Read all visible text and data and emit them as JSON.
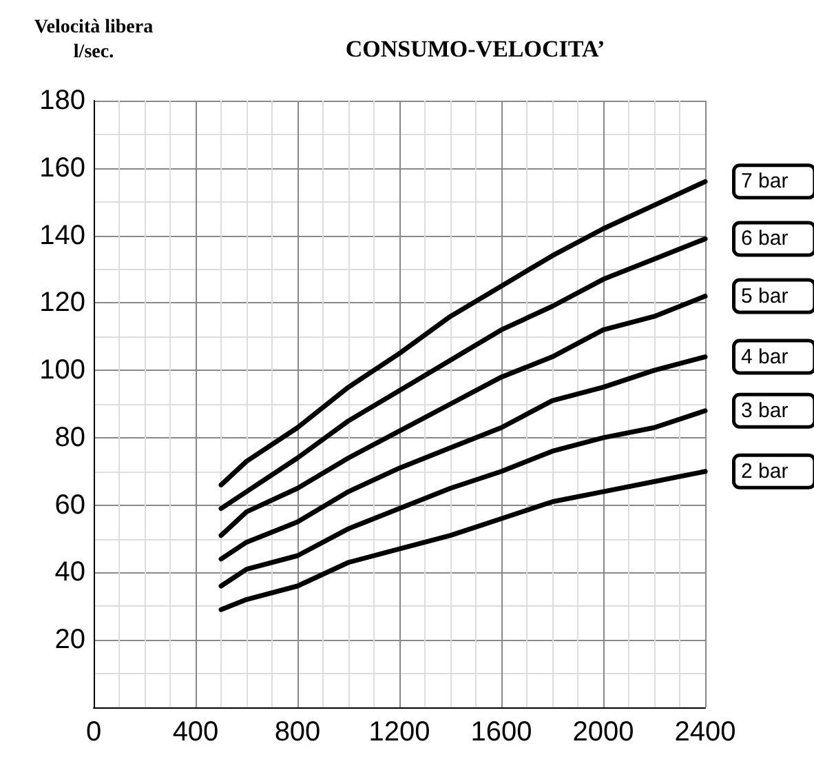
{
  "chart_data": {
    "type": "line",
    "title": "CONSUMO-VELOCITA’",
    "ylabel": "Velocità libera\nl/sec.",
    "x": [
      500,
      600,
      800,
      1000,
      1200,
      1400,
      1600,
      1800,
      2000,
      2200,
      2400
    ],
    "series": [
      {
        "name": "7 bar",
        "color": "#000000",
        "values": [
          66,
          73,
          83,
          95,
          105,
          116,
          125,
          134,
          142,
          149,
          156
        ]
      },
      {
        "name": "6 bar",
        "color": "#000000",
        "values": [
          59,
          64,
          74,
          85,
          94,
          103,
          112,
          119,
          127,
          133,
          139
        ]
      },
      {
        "name": "5 bar",
        "color": "#000000",
        "values": [
          51,
          58,
          65,
          74,
          82,
          90,
          98,
          104,
          112,
          116,
          122
        ]
      },
      {
        "name": "4 bar",
        "color": "#000000",
        "values": [
          44,
          49,
          55,
          64,
          71,
          77,
          83,
          91,
          95,
          100,
          104
        ]
      },
      {
        "name": "3 bar",
        "color": "#000000",
        "values": [
          36,
          41,
          45,
          53,
          59,
          65,
          70,
          76,
          80,
          83,
          88
        ]
      },
      {
        "name": "2 bar",
        "color": "#000000",
        "values": [
          29,
          32,
          36,
          43,
          47,
          51,
          56,
          61,
          64,
          67,
          70
        ]
      }
    ],
    "xlim": [
      0,
      2400
    ],
    "xticks": [
      0,
      400,
      800,
      1200,
      1600,
      2000,
      2400
    ],
    "ylim": [
      0,
      180
    ],
    "yticks": [
      {
        "value": 0,
        "label": null
      },
      20,
      40,
      60,
      80,
      100,
      120,
      140,
      160,
      180
    ],
    "grid": true,
    "legend": false,
    "marker": "none",
    "line_style": "solid"
  }
}
